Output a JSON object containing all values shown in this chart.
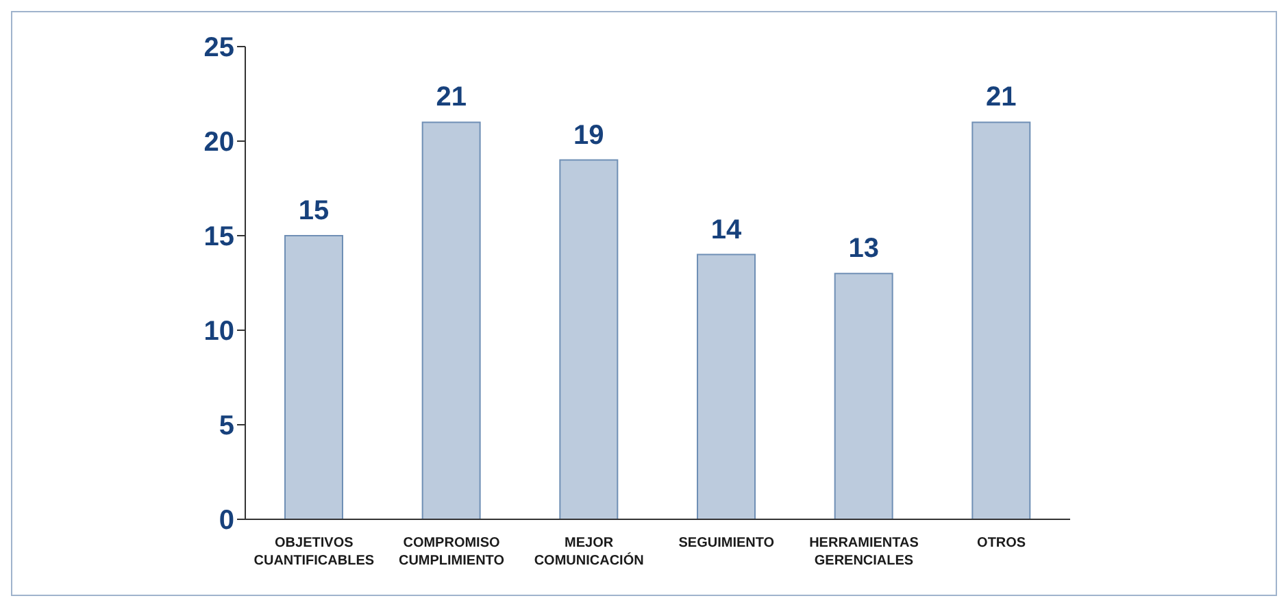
{
  "chart_data": {
    "type": "bar",
    "categories": [
      "OBJETIVOS CUANTIFICABLES",
      "COMPROMISO CUMPLIMIENTO",
      "MEJOR COMUNICACIÓN",
      "SEGUIMIENTO",
      "HERRAMIENTAS GERENCIALES",
      "OTROS"
    ],
    "values": [
      15,
      21,
      19,
      14,
      13,
      21
    ],
    "color": "#bccbdd",
    "ylim": [
      0,
      25
    ],
    "yticks": [
      0,
      5,
      10,
      15,
      20,
      25
    ],
    "grid": false,
    "data_labels": true
  }
}
